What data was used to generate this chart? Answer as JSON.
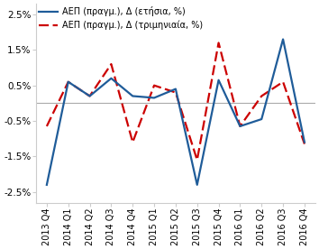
{
  "labels": [
    "2013 Q4",
    "2014 Q1",
    "2014 Q2",
    "2014 Q3",
    "2014 Q4",
    "2015 Q1",
    "2015 Q2",
    "2015 Q3",
    "2015 Q4",
    "2016 Q1",
    "2016 Q2",
    "2016 Q3",
    "2016 Q4"
  ],
  "annual": [
    -2.3,
    0.6,
    0.2,
    0.7,
    0.2,
    0.15,
    0.4,
    -2.3,
    0.65,
    -0.65,
    -0.45,
    1.8,
    -1.1
  ],
  "quarterly": [
    -0.65,
    0.6,
    0.2,
    1.1,
    -1.1,
    0.5,
    0.3,
    -1.6,
    1.7,
    -0.65,
    0.2,
    0.6,
    -1.15
  ],
  "line1_color": "#1F5C99",
  "line2_color": "#CC0000",
  "hline_color": "#AAAAAA",
  "legend1": "AEΠ (πραγμ.), Δ (ετήσια, %)",
  "legend2": "AEΠ (πραγμ.), Δ (τριμηνιαία, %)",
  "ylim": [
    -2.8,
    2.8
  ],
  "yticks": [
    -2.5,
    -1.5,
    -0.5,
    0.5,
    1.5,
    2.5
  ],
  "ytick_labels": [
    "-2.5%",
    "-1.5%",
    "-0.5%",
    "0.5%",
    "1.5%",
    "2.5%"
  ],
  "background_color": "#FFFFFF",
  "font_size": 7.5
}
